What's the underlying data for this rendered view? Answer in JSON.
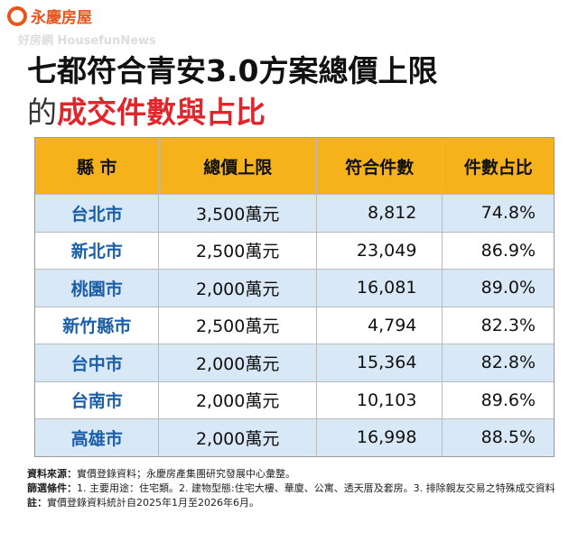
{
  "header": {
    "logo": "永慶房屋",
    "watermark": "好房網 HousefunNews",
    "title_line1": "七都符合青安3.0方案總價上限",
    "title_line2_prefix": "的",
    "title_line2_highlight": "成交件數與占比"
  },
  "table": {
    "columns": [
      "縣 市",
      "總價上限",
      "符合件數",
      "件數占比"
    ],
    "rows": [
      [
        "台北市",
        "3,500萬元",
        "8,812",
        "74.8%"
      ],
      [
        "新北市",
        "2,500萬元",
        "23,049",
        "86.9%"
      ],
      [
        "桃園市",
        "2,000萬元",
        "16,081",
        "89.0%"
      ],
      [
        "新竹縣市",
        "2,500萬元",
        "4,794",
        "82.3%"
      ],
      [
        "台中市",
        "2,000萬元",
        "15,364",
        "82.8%"
      ],
      [
        "台南市",
        "2,000萬元",
        "10,103",
        "89.6%"
      ],
      [
        "高雄市",
        "2,000萬元",
        "16,998",
        "88.5%"
      ]
    ]
  },
  "notes": [
    {
      "label": "資料來源：",
      "text": "實價登錄資料；永慶房產集團研究發展中心彙整。"
    },
    {
      "label": "篩選條件：",
      "text": "1. 主要用途：住宅類。2. 建物型態:住宅大樓、華廈、公寓、透天厝及套房。3. 排除親友交易之特殊成交資料"
    },
    {
      "label": "註：",
      "text": "實價登錄資料統計自2025年1月至2026年6月。"
    }
  ]
}
